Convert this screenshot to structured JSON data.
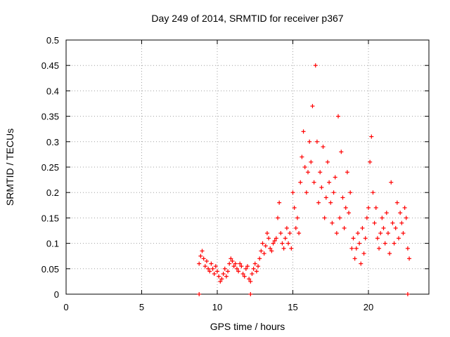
{
  "chart_data": {
    "type": "scatter",
    "title": "Day 249 of 2014, SRMTID for receiver p367",
    "xlabel": "GPS time / hours",
    "ylabel": "SRMTID / TECUs",
    "xlim": [
      0,
      24
    ],
    "ylim": [
      0,
      0.5
    ],
    "xticks": [
      0,
      5,
      10,
      15,
      20
    ],
    "xtick_labels": [
      "0",
      "5",
      "10",
      "15",
      "20"
    ],
    "yticks": [
      0,
      0.05,
      0.1,
      0.15,
      0.2,
      0.25,
      0.3,
      0.35,
      0.4,
      0.45,
      0.5
    ],
    "ytick_labels": [
      "0",
      "0.05",
      "0.1",
      "0.15",
      "0.2",
      "0.25",
      "0.3",
      "0.35",
      "0.4",
      "0.45",
      "0.5"
    ],
    "grid": true,
    "marker": "+",
    "series_color": "#ff0000",
    "series": [
      {
        "name": "SRMTID",
        "x": [
          8.8,
          8.9,
          9.0,
          9.1,
          9.2,
          9.3,
          9.4,
          9.5,
          9.6,
          9.7,
          9.8,
          9.9,
          10.0,
          10.1,
          10.2,
          10.3,
          10.4,
          10.5,
          10.6,
          10.7,
          10.8,
          10.9,
          11.0,
          11.1,
          11.2,
          11.3,
          11.4,
          11.5,
          11.6,
          11.7,
          11.8,
          11.9,
          12.0,
          12.1,
          12.2,
          12.3,
          12.4,
          12.5,
          12.6,
          12.7,
          12.8,
          12.9,
          13.0,
          13.1,
          13.2,
          13.3,
          13.4,
          13.5,
          13.6,
          13.7,
          13.8,
          13.9,
          14.0,
          14.1,
          14.2,
          14.3,
          14.4,
          14.5,
          14.6,
          14.7,
          14.8,
          14.9,
          15.0,
          15.1,
          15.2,
          15.3,
          15.4,
          15.5,
          15.6,
          15.7,
          15.8,
          15.9,
          16.0,
          16.1,
          16.2,
          16.3,
          16.4,
          16.5,
          16.6,
          16.7,
          16.8,
          16.9,
          17.0,
          17.1,
          17.2,
          17.3,
          17.4,
          17.5,
          17.6,
          17.7,
          17.8,
          17.9,
          18.0,
          18.1,
          18.2,
          18.3,
          18.4,
          18.5,
          18.6,
          18.7,
          18.8,
          18.9,
          19.0,
          19.1,
          19.2,
          19.3,
          19.4,
          19.5,
          19.6,
          19.7,
          19.8,
          19.9,
          20.0,
          20.1,
          20.2,
          20.3,
          20.4,
          20.5,
          20.6,
          20.7,
          20.8,
          20.9,
          21.0,
          21.1,
          21.2,
          21.3,
          21.4,
          21.5,
          21.6,
          21.7,
          21.8,
          21.9,
          22.0,
          22.1,
          22.2,
          22.3,
          22.4,
          22.5,
          22.6,
          22.7,
          8.8,
          12.2,
          22.6
        ],
        "y": [
          0.06,
          0.075,
          0.085,
          0.07,
          0.055,
          0.065,
          0.05,
          0.045,
          0.06,
          0.05,
          0.04,
          0.055,
          0.045,
          0.035,
          0.025,
          0.03,
          0.04,
          0.05,
          0.035,
          0.045,
          0.06,
          0.07,
          0.065,
          0.055,
          0.06,
          0.05,
          0.045,
          0.06,
          0.055,
          0.04,
          0.035,
          0.05,
          0.055,
          0.03,
          0.025,
          0.04,
          0.05,
          0.06,
          0.045,
          0.055,
          0.07,
          0.085,
          0.1,
          0.08,
          0.095,
          0.12,
          0.11,
          0.09,
          0.085,
          0.1,
          0.105,
          0.11,
          0.15,
          0.18,
          0.12,
          0.1,
          0.09,
          0.11,
          0.13,
          0.1,
          0.12,
          0.09,
          0.2,
          0.17,
          0.13,
          0.15,
          0.12,
          0.22,
          0.27,
          0.32,
          0.25,
          0.2,
          0.24,
          0.3,
          0.26,
          0.37,
          0.22,
          0.45,
          0.3,
          0.18,
          0.24,
          0.21,
          0.29,
          0.15,
          0.19,
          0.26,
          0.22,
          0.18,
          0.14,
          0.2,
          0.23,
          0.12,
          0.35,
          0.15,
          0.28,
          0.19,
          0.13,
          0.17,
          0.24,
          0.16,
          0.2,
          0.09,
          0.11,
          0.07,
          0.09,
          0.12,
          0.1,
          0.06,
          0.13,
          0.08,
          0.11,
          0.15,
          0.17,
          0.26,
          0.31,
          0.2,
          0.14,
          0.17,
          0.11,
          0.09,
          0.12,
          0.15,
          0.13,
          0.1,
          0.16,
          0.12,
          0.08,
          0.22,
          0.14,
          0.1,
          0.13,
          0.18,
          0.11,
          0.16,
          0.14,
          0.12,
          0.17,
          0.15,
          0.09,
          0.07,
          0.0,
          0.0,
          0.0
        ]
      }
    ]
  }
}
